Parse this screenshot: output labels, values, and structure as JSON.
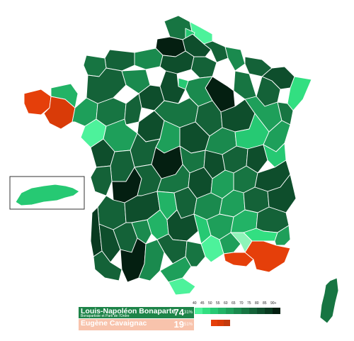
{
  "map": {
    "colors": {
      "sea_stroke": "#ffffff",
      "inset_border": "#333333"
    }
  },
  "legend": {
    "ticks": [
      "40",
      "45",
      "50",
      "55",
      "60",
      "65",
      "70",
      "75",
      "80",
      "85",
      "90+"
    ],
    "green_scale": [
      "#4df29b",
      "#32df81",
      "#26c973",
      "#22b366",
      "#1e9f5a",
      "#1a8a4e",
      "#177542",
      "#146238",
      "#0e4e2c",
      "#093a20",
      "#041f11"
    ],
    "orange_scale": [
      "#e53f0a",
      "#d93b08",
      "#c33a0d"
    ]
  },
  "candidates": [
    {
      "name": "Louis-Napoléon Bonaparte",
      "subtitle": "Bonapartiste et Parti de l'Ordre",
      "pct_int": "74",
      "pct_dec": ",31%",
      "color": "#1e8449"
    },
    {
      "name": "Eugène Cavaignac",
      "subtitle": "",
      "pct_int": "19",
      "pct_dec": ",51%",
      "color": "#f8c3ac"
    }
  ]
}
